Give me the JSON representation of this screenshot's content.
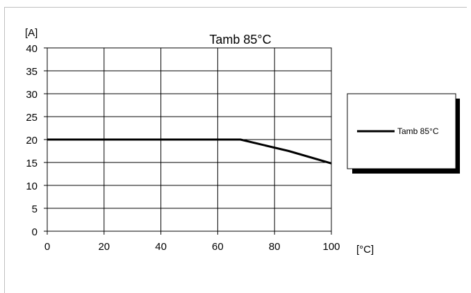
{
  "header": {
    "title": ""
  },
  "chart_data": {
    "type": "line",
    "title": "Tamb 85°C",
    "ylabel": "[A]",
    "xlabel": "[°C]",
    "xlim": [
      0,
      100
    ],
    "ylim": [
      0,
      40
    ],
    "x_ticks": [
      "0",
      "20",
      "40",
      "60",
      "80",
      "100"
    ],
    "y_ticks": [
      "0",
      "5",
      "10",
      "15",
      "20",
      "25",
      "30",
      "35",
      "40"
    ],
    "grid": true,
    "legend_position": "right",
    "series": [
      {
        "name": "Tamb 85°C",
        "color": "#000000",
        "x": [
          0,
          68,
          85,
          100
        ],
        "y": [
          20,
          20,
          17.5,
          14.8
        ]
      }
    ]
  }
}
